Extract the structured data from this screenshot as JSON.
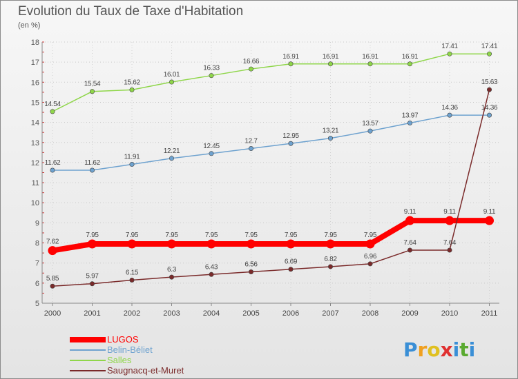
{
  "title": "Evolution du Taux de Taxe d'Habitation",
  "subtitle": "(en %)",
  "chart_data": {
    "type": "line",
    "x": [
      "2000",
      "2001",
      "2002",
      "2003",
      "2004",
      "2005",
      "2006",
      "2007",
      "2008",
      "2009",
      "2010",
      "2011"
    ],
    "ylim": [
      5,
      18
    ],
    "yticks": [
      "5",
      "6",
      "7",
      "8",
      "9",
      "10",
      "11",
      "12",
      "13",
      "14",
      "15",
      "16",
      "17",
      "18"
    ],
    "grid": "horizontal dotted",
    "legend_placement": "bottom-left",
    "series": [
      {
        "name": "Salles",
        "color": "#8fd64a",
        "values": [
          14.54,
          15.54,
          15.62,
          16.01,
          16.33,
          16.66,
          16.91,
          16.91,
          16.91,
          16.91,
          17.41,
          17.41
        ],
        "labels": [
          "14.54",
          "15.54",
          "15.62",
          "16.01",
          "16.33",
          "16.66",
          "16.91",
          "16.91",
          "16.91",
          "16.91",
          "17.41",
          "17.41"
        ]
      },
      {
        "name": "Belin-Béliet",
        "color": "#6ea2cf",
        "values": [
          11.62,
          11.62,
          11.91,
          12.21,
          12.45,
          12.7,
          12.95,
          13.21,
          13.57,
          13.97,
          14.36,
          14.36
        ],
        "labels": [
          "11.62",
          "11.62",
          "11.91",
          "12.21",
          "12.45",
          "12.7",
          "12.95",
          "13.21",
          "13.57",
          "13.97",
          "14.36",
          "14.36"
        ]
      },
      {
        "name": "LUGOS",
        "color": "#ff0000",
        "values": [
          7.62,
          7.95,
          7.95,
          7.95,
          7.95,
          7.95,
          7.95,
          7.95,
          7.95,
          9.11,
          9.11,
          9.11
        ],
        "labels": [
          "7.62",
          "7.95",
          "7.95",
          "7.95",
          "7.95",
          "7.95",
          "7.95",
          "7.95",
          "7.95",
          "9.11",
          "9.11",
          "9.11"
        ]
      },
      {
        "name": "Saugnacq-et-Muret",
        "color": "#7a2a2a",
        "values": [
          5.85,
          5.97,
          6.15,
          6.3,
          6.43,
          6.56,
          6.69,
          6.82,
          6.96,
          7.64,
          7.64,
          15.63
        ],
        "labels": [
          "5.85",
          "5.97",
          "6.15",
          "6.3",
          "6.43",
          "6.56",
          "6.69",
          "6.82",
          "6.96",
          "7.64",
          "7.64",
          "15.63"
        ]
      }
    ]
  },
  "legend": [
    {
      "label": "LUGOS",
      "color": "#ff0000"
    },
    {
      "label": "Belin-Béliet",
      "color": "#6ea2cf"
    },
    {
      "label": "Salles",
      "color": "#8fd64a"
    },
    {
      "label": "Saugnacq-et-Muret",
      "color": "#7a2a2a"
    }
  ],
  "logo": {
    "letters": [
      "P",
      "r",
      "o",
      "x",
      "i",
      "t",
      "i"
    ],
    "colors": [
      "#3a8fd6",
      "#f0a020",
      "#e0c020",
      "#e03030",
      "#3a8fd6",
      "#5aaa30",
      "#3a8fd6"
    ]
  }
}
